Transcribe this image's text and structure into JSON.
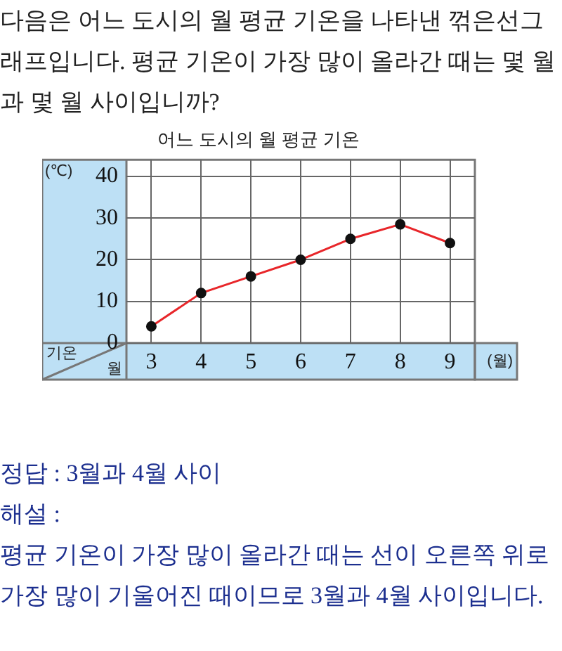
{
  "chart_data": {
    "type": "line",
    "title": "어느 도시의 월 평균 기온",
    "subtitle": "다음은 어느 도시의 월 평균 기온을 나타낸 꺾은선그래프입니다. 평균 기온이 가장 많이 올라간 때는 몇 월과 몇 월 사이입니까?",
    "xlabel": "(월)",
    "ylabel": "(℃)",
    "categories": [
      "3",
      "4",
      "5",
      "6",
      "7",
      "8",
      "9"
    ],
    "series": [
      {
        "color": "#e8262a",
        "values": [
          4,
          12,
          16,
          20,
          25,
          28.5,
          24
        ]
      }
    ],
    "ylim": [
      0,
      44
    ],
    "yticks": [
      0,
      10,
      20,
      30,
      40
    ],
    "grid": true,
    "legend": false,
    "marker": "circle",
    "line_style": "solid",
    "annotations": [
      "기온",
      "월",
      "정답 : 3월과 4월 사이",
      "해설 :",
      "평균 기온이 가장 많이 올라간 때는 선이 오른쪽 위로 가장 많이 기울어진 때이므로 3월과 4월 사이입니다."
    ]
  }
}
